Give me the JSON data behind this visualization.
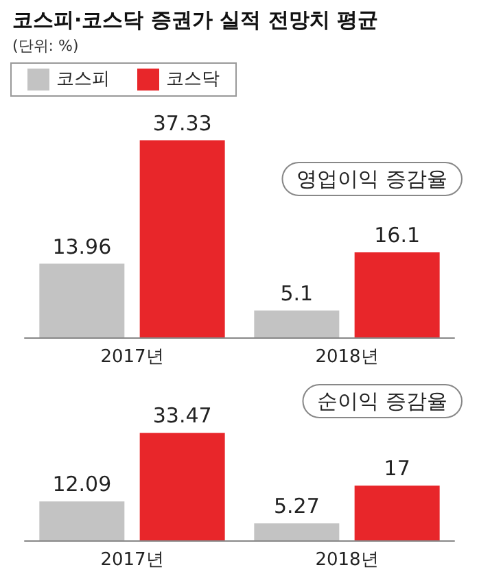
{
  "chart_data": [
    {
      "type": "bar",
      "title": "코스피·코스닥 증권가 실적 전망치 평균",
      "subtitle": "(단위: %)",
      "annotations": [
        "영업이익 증감율"
      ],
      "categories": [
        "2017년",
        "2018년"
      ],
      "series": [
        {
          "name": "코스피",
          "color": "#c3c3c3",
          "values": [
            13.96,
            5.1
          ]
        },
        {
          "name": "코스닥",
          "color": "#e8262a",
          "values": [
            37.33,
            16.1
          ]
        }
      ],
      "data_labels": true,
      "legend": "top left"
    },
    {
      "type": "bar",
      "annotations": [
        "순이익 증감율"
      ],
      "categories": [
        "2017년",
        "2018년"
      ],
      "series": [
        {
          "color": "#c3c3c3",
          "values": [
            12.09,
            5.27
          ]
        },
        {
          "color": "#e8262a",
          "values": [
            33.47,
            17
          ]
        }
      ],
      "data_labels": true,
      "legend": false
    }
  ]
}
